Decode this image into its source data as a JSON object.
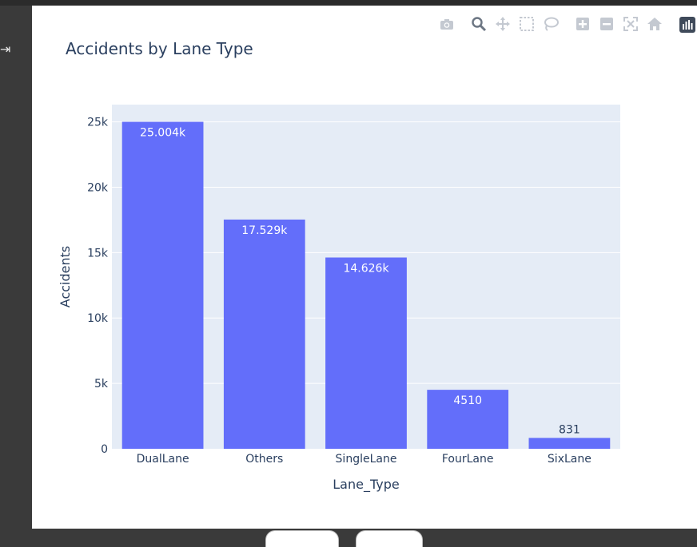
{
  "sidebar": {
    "toggle_icon": "expand-right-icon"
  },
  "modebar": {
    "buttons": [
      "camera-icon",
      "zoom-icon",
      "pan-icon",
      "box-select-icon",
      "lasso-select-icon",
      "zoom-in-icon",
      "zoom-out-icon",
      "autoscale-icon",
      "reset-axes-icon"
    ],
    "logo": "plotly-logo-icon"
  },
  "chart_data": {
    "type": "bar",
    "title": "Accidents by Lane Type",
    "xlabel": "Lane_Type",
    "ylabel": "Accidents",
    "categories": [
      "DualLane",
      "Others",
      "SingleLane",
      "FourLane",
      "SixLane"
    ],
    "values": [
      25004,
      17529,
      14626,
      4510,
      831
    ],
    "data_labels": [
      "25.004k",
      "17.529k",
      "14.626k",
      "4510",
      "831"
    ],
    "yticks": [
      {
        "value": 0,
        "label": "0"
      },
      {
        "value": 5000,
        "label": "5k"
      },
      {
        "value": 10000,
        "label": "10k"
      },
      {
        "value": 15000,
        "label": "15k"
      },
      {
        "value": 20000,
        "label": "20k"
      },
      {
        "value": 25000,
        "label": "25k"
      }
    ],
    "ylim": [
      0,
      26320
    ],
    "grid": true,
    "colors": {
      "bar": "#636efa",
      "plot_bg": "#e5ecf6",
      "text": "#2a3f5f"
    }
  },
  "footer": {
    "buttons": [
      "",
      ""
    ]
  }
}
